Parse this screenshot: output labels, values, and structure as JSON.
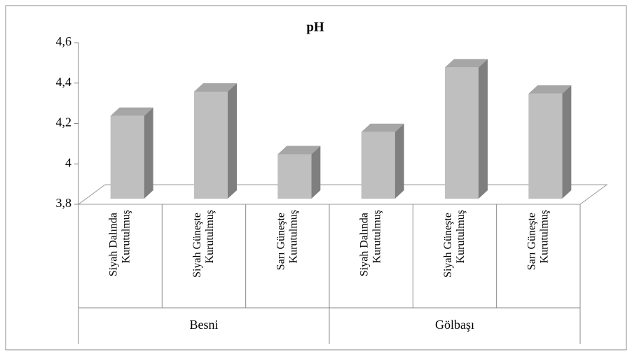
{
  "chart_data": {
    "type": "bar3d",
    "title": "pH",
    "categories": [
      "Siyah Dalında Kurutulmuş",
      "Siyah Güneşte Kurutulmuş",
      "Sarı Güneşte Kurutulmuş",
      "Siyah Dalında Kurutulmuş",
      "Siyah Güneşte Kurutulmuş",
      "Sarı Güneşte Kurutulmuş"
    ],
    "groups": [
      {
        "name": "Besni",
        "size": 3
      },
      {
        "name": "Gölbaşı",
        "size": 3
      }
    ],
    "values": [
      4.21,
      4.33,
      4.02,
      4.13,
      4.45,
      4.32
    ],
    "color": "#bfbfbf",
    "ylim": [
      3.8,
      4.6
    ],
    "yticks": [
      {
        "value": 3.8,
        "label": "3,8"
      },
      4,
      {
        "value": 4.2,
        "label": "4,2"
      },
      {
        "value": 4.4,
        "label": "4,4"
      },
      {
        "value": 4.6,
        "label": "4,6"
      }
    ]
  }
}
